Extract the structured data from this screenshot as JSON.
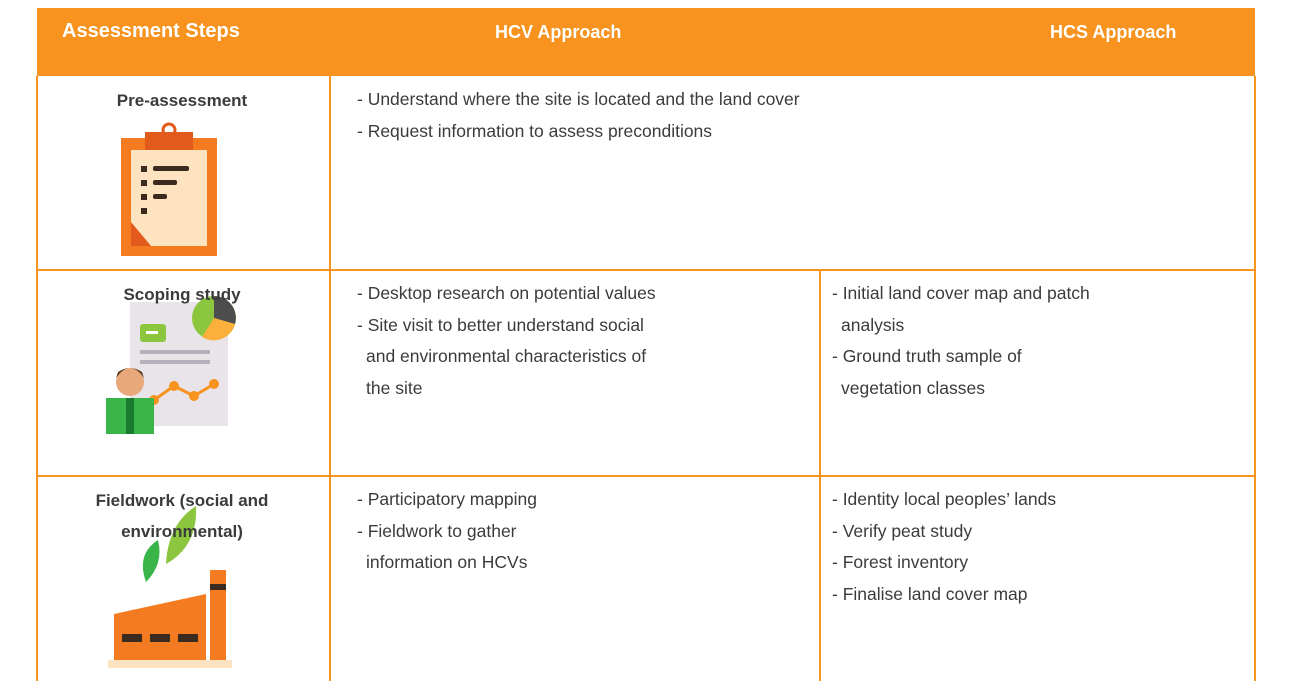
{
  "header": {
    "columns": [
      "Assessment Steps",
      "HCV Approach",
      "HCS Approach"
    ]
  },
  "rows": [
    {
      "step": [
        "Pre-assessment"
      ],
      "combined": [
        [
          "- Understand where the site is located and the land cover"
        ],
        [
          "- Request information to assess preconditions"
        ]
      ]
    },
    {
      "step": [
        "Scoping study"
      ],
      "hcv": [
        [
          "- Desktop research on potential values"
        ],
        [
          "- Site visit to better understand social",
          "and environmental characteristics of",
          "the site"
        ]
      ],
      "hcs": [
        [
          "- Initial land cover map and patch",
          "analysis"
        ],
        [
          "- Ground truth sample of",
          "vegetation classes"
        ]
      ]
    },
    {
      "step": [
        "Fieldwork (social and",
        "environmental)"
      ],
      "hcv": [
        [
          "- Participatory mapping"
        ],
        [
          "- Fieldwork to gather",
          "information on HCVs"
        ]
      ],
      "hcs": [
        [
          "- Identity local peoples’ lands"
        ],
        [
          "- Verify peat study"
        ],
        [
          "- Forest inventory"
        ],
        [
          "- Finalise land cover map"
        ]
      ]
    }
  ]
}
